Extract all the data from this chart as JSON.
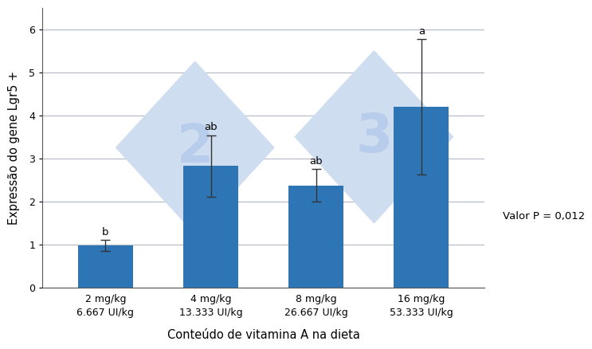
{
  "categories": [
    "2 mg/kg\n6.667 UI/kg",
    "4 mg/kg\n13.333 UI/kg",
    "8 mg/kg\n26.667 UI/kg",
    "16 mg/kg\n53.333 UI/kg"
  ],
  "values": [
    0.97,
    2.82,
    2.37,
    4.2
  ],
  "errors": [
    0.13,
    0.72,
    0.38,
    1.57
  ],
  "letters": [
    "b",
    "ab",
    "ab",
    "a"
  ],
  "bar_color": "#2E75B6",
  "xlabel": "Conteúdo de vitamina A na dieta",
  "ylabel": "Expressão do gene Lgr5 +",
  "ylim": [
    0,
    6.5
  ],
  "yticks": [
    0,
    1,
    2,
    3,
    4,
    5,
    6
  ],
  "pvalue_text": "Valor P = 0,012",
  "background_color": "#ffffff",
  "grid_color": "#b0b8c8",
  "letter_fontsize": 9.5,
  "axis_label_fontsize": 10.5,
  "tick_fontsize": 9,
  "pvalue_fontsize": 9.5,
  "bar_width": 0.52,
  "wm_color": "#cfddf0",
  "wm_text_color": "#b8cceb"
}
